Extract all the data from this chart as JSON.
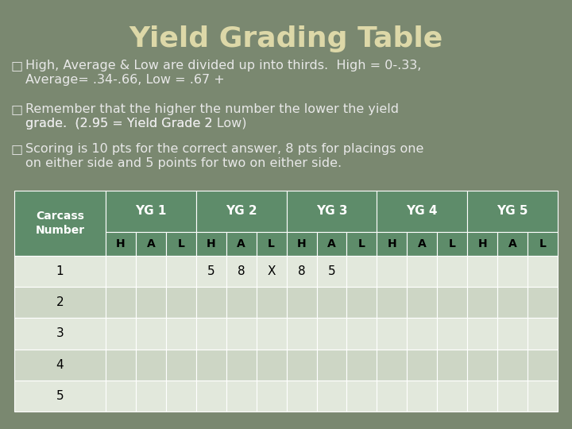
{
  "title": "Yield Grading Table",
  "title_color": "#ddd8a8",
  "title_fontsize": 26,
  "background_color": "#7a8870",
  "bullet_color": "#e8e8e8",
  "bullet_fontsize": 11.5,
  "bullets": [
    "High, Average & Low are divided up into thirds.  High = 0-.33,\nAverage= .34-.66, Low = .67 +",
    "Remember that the higher the number the lower the yield\ngrade.  (2.95 = Yield Grade 2 Low)",
    "Scoring is 10 pts for the correct answer, 8 pts for placings one\non either side and 5 points for two on either side."
  ],
  "table_header_bg": "#5e8c6a",
  "table_header_text": "#ffffff",
  "table_row_bg_odd": "#e2e8dc",
  "table_row_bg_even": "#cdd6c5",
  "table_border_color": "#ffffff",
  "col_headers": [
    "Carcass\nNumber",
    "YG 1",
    "YG 2",
    "YG 3",
    "YG 4",
    "YG 5"
  ],
  "sub_headers": [
    "H",
    "A",
    "L"
  ],
  "row_data": [
    [
      "",
      "",
      "",
      "5",
      "8",
      "X",
      "8",
      "5",
      "",
      "",
      "",
      "",
      "",
      "",
      ""
    ],
    [
      "",
      "",
      "",
      "",
      "",
      "",
      "",
      "",
      "",
      "",
      "",
      "",
      "",
      "",
      ""
    ],
    [
      "",
      "",
      "",
      "",
      "",
      "",
      "",
      "",
      "",
      "",
      "",
      "",
      "",
      "",
      ""
    ],
    [
      "",
      "",
      "",
      "",
      "",
      "",
      "",
      "",
      "",
      "",
      "",
      "",
      "",
      "",
      ""
    ],
    [
      "",
      "",
      "",
      "",
      "",
      "",
      "",
      "",
      "",
      "",
      "",
      "",
      "",
      "",
      ""
    ]
  ],
  "num_data_rows": 5
}
